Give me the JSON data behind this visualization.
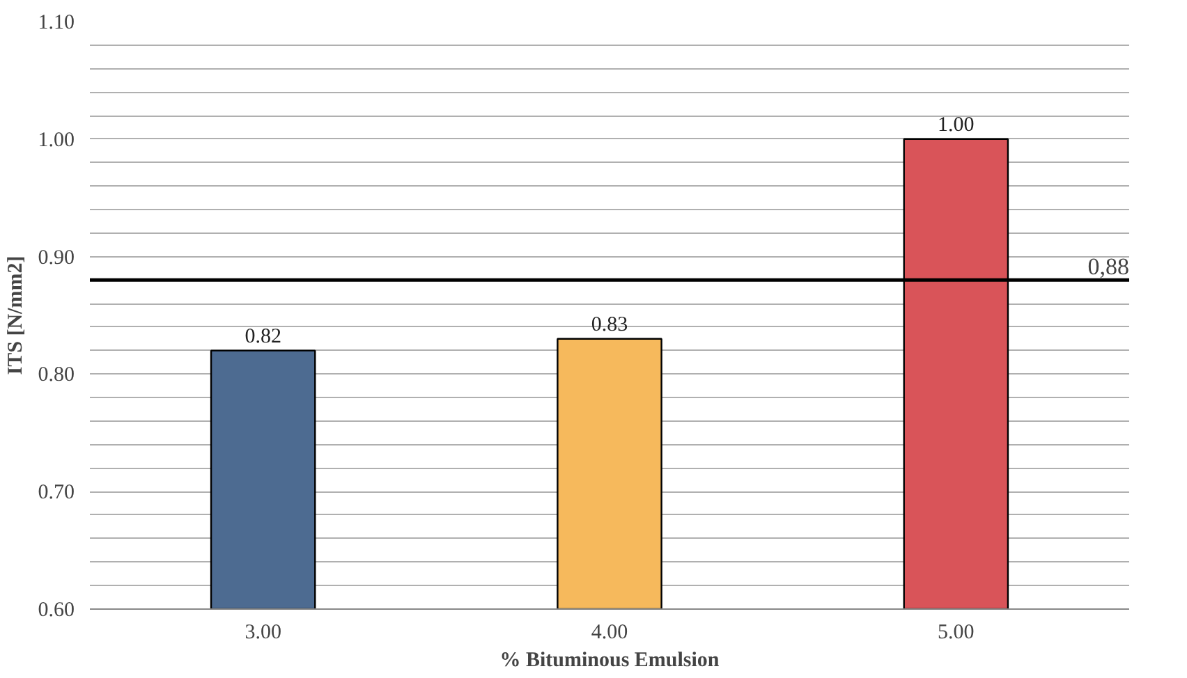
{
  "chart_data": {
    "type": "bar",
    "xlabel": "% Bituminous Emulsion",
    "ylabel": "ITS [N/mm2]",
    "categories": [
      "3.00",
      "4.00",
      "5.00"
    ],
    "values": [
      0.82,
      0.83,
      1.0
    ],
    "colors": [
      "#4d6b91",
      "#f6b95c",
      "#d95459"
    ],
    "value_labels": [
      "0.82",
      "0.83",
      "1.00"
    ],
    "ylim": [
      0.6,
      1.1
    ],
    "yticks": [
      {
        "value": 0.6,
        "label": "0.60"
      },
      {
        "value": 0.62,
        "label": null
      },
      {
        "value": 0.64,
        "label": null
      },
      {
        "value": 0.66,
        "label": null
      },
      {
        "value": 0.68,
        "label": null
      },
      {
        "value": 0.7,
        "label": "0.70"
      },
      {
        "value": 0.72,
        "label": null
      },
      {
        "value": 0.74,
        "label": null
      },
      {
        "value": 0.76,
        "label": null
      },
      {
        "value": 0.78,
        "label": null
      },
      {
        "value": 0.8,
        "label": "0.80"
      },
      {
        "value": 0.82,
        "label": null
      },
      {
        "value": 0.84,
        "label": null
      },
      {
        "value": 0.86,
        "label": null
      },
      {
        "value": 0.88,
        "label": null
      },
      {
        "value": 0.9,
        "label": "0.90"
      },
      {
        "value": 0.92,
        "label": null
      },
      {
        "value": 0.94,
        "label": null
      },
      {
        "value": 0.96,
        "label": null
      },
      {
        "value": 0.98,
        "label": null
      },
      {
        "value": 1.0,
        "label": "1.00"
      },
      {
        "value": 1.02,
        "label": null
      },
      {
        "value": 1.04,
        "label": null
      },
      {
        "value": 1.06,
        "label": null
      },
      {
        "value": 1.08,
        "label": null
      },
      {
        "value": 1.1,
        "label": "1.10"
      }
    ],
    "grid": "y",
    "ref_lines": [
      {
        "axis": "y",
        "value": 0.88,
        "label": "0,88",
        "color": "#000000"
      }
    ]
  }
}
